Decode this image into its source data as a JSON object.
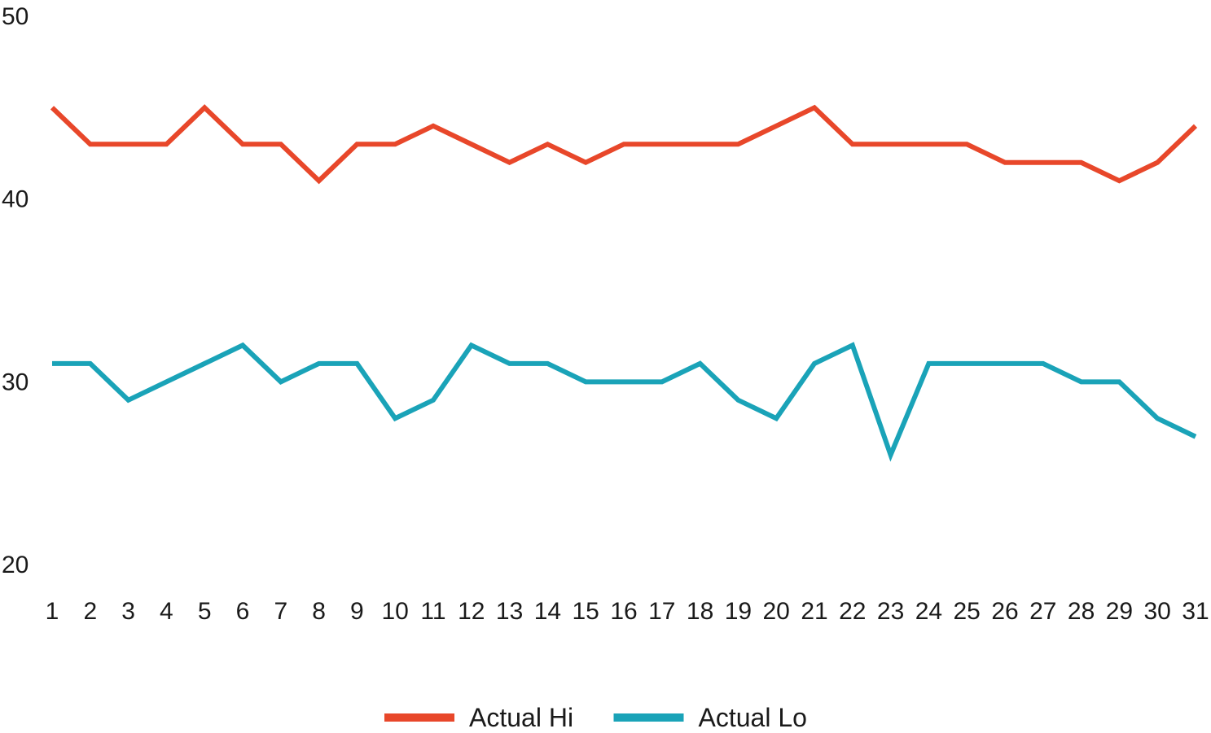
{
  "chart_data": {
    "type": "line",
    "title": "",
    "xlabel": "",
    "ylabel": "",
    "x": [
      1,
      2,
      3,
      4,
      5,
      6,
      7,
      8,
      9,
      10,
      11,
      12,
      13,
      14,
      15,
      16,
      17,
      18,
      19,
      20,
      21,
      22,
      23,
      24,
      25,
      26,
      27,
      28,
      29,
      30,
      31
    ],
    "x_tick_labels": [
      "1",
      "2",
      "3",
      "4",
      "5",
      "6",
      "7",
      "8",
      "9",
      "10",
      "11",
      "12",
      "13",
      "14",
      "15",
      "16",
      "17",
      "18",
      "19",
      "20",
      "21",
      "22",
      "23",
      "24",
      "25",
      "26",
      "27",
      "28",
      "29",
      "30",
      "31"
    ],
    "ylim": [
      20,
      50
    ],
    "y_ticks": [
      20,
      30,
      40,
      50
    ],
    "y_tick_labels": [
      "20",
      "30",
      "40",
      "50"
    ],
    "grid": false,
    "legend_position": "bottom-center",
    "series": [
      {
        "name": "Actual Hi",
        "color": "#e8472a",
        "values": [
          45,
          43,
          43,
          43,
          45,
          43,
          43,
          41,
          43,
          43,
          44,
          43,
          42,
          43,
          42,
          43,
          43,
          43,
          43,
          44,
          45,
          43,
          43,
          43,
          43,
          42,
          42,
          42,
          41,
          42,
          44
        ]
      },
      {
        "name": "Actual Lo",
        "color": "#1aa3b8",
        "values": [
          31,
          31,
          29,
          30,
          31,
          32,
          30,
          31,
          31,
          28,
          29,
          32,
          31,
          31,
          30,
          30,
          30,
          31,
          29,
          28,
          31,
          32,
          26,
          31,
          31,
          31,
          31,
          30,
          30,
          28,
          27
        ]
      }
    ]
  }
}
